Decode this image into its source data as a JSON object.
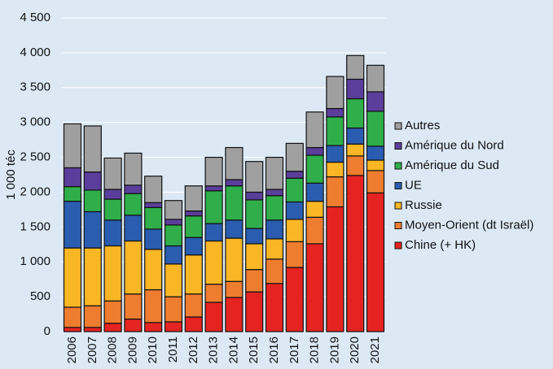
{
  "chart_data": {
    "type": "stacked_bar",
    "y_label": "1 000 téc",
    "categories": [
      "2006",
      "2007",
      "2008",
      "2009",
      "2010",
      "2011",
      "2012",
      "2013",
      "2014",
      "2015",
      "2016",
      "2017",
      "2018",
      "2019",
      "2020",
      "2021"
    ],
    "series": [
      {
        "name": "Chine (+ HK)",
        "color": "#e52421",
        "values": [
          60,
          60,
          120,
          180,
          130,
          140,
          210,
          420,
          490,
          570,
          690,
          920,
          1260,
          1790,
          2240,
          1990
        ]
      },
      {
        "name": "Moyen-Orient (dt Israël)",
        "color": "#ee7d30",
        "values": [
          290,
          310,
          320,
          360,
          470,
          360,
          330,
          260,
          230,
          320,
          350,
          370,
          380,
          430,
          280,
          320
        ]
      },
      {
        "name": "Russie",
        "color": "#f9b625",
        "values": [
          850,
          830,
          790,
          760,
          580,
          470,
          560,
          620,
          620,
          370,
          290,
          320,
          230,
          210,
          170,
          150
        ]
      },
      {
        "name": "UE",
        "color": "#2a5db0",
        "values": [
          670,
          520,
          370,
          370,
          290,
          260,
          250,
          250,
          260,
          220,
          270,
          250,
          260,
          240,
          230,
          200
        ]
      },
      {
        "name": "Amérique du Sud",
        "color": "#2fae4a",
        "values": [
          210,
          310,
          300,
          310,
          310,
          300,
          310,
          470,
          490,
          410,
          350,
          340,
          400,
          410,
          420,
          500
        ]
      },
      {
        "name": "Amérique du Nord",
        "color": "#5b3e9b",
        "values": [
          270,
          260,
          140,
          120,
          70,
          80,
          70,
          70,
          90,
          110,
          90,
          100,
          110,
          120,
          280,
          280
        ]
      },
      {
        "name": "Autres",
        "color": "#a0a0a0",
        "values": [
          630,
          660,
          450,
          460,
          380,
          270,
          360,
          410,
          460,
          440,
          460,
          400,
          510,
          460,
          340,
          380
        ]
      }
    ],
    "ylim": [
      0,
      4500
    ],
    "yticks": [
      0,
      500,
      {
        "value": 1000,
        "label": "1 000"
      },
      {
        "value": 1500,
        "label": "1 500"
      },
      {
        "value": 2000,
        "label": "2 000"
      },
      {
        "value": 2500,
        "label": "2 500"
      },
      {
        "value": 3000,
        "label": "3 000"
      },
      {
        "value": 3500,
        "label": "3 500"
      },
      {
        "value": 4000,
        "label": "4 000"
      },
      {
        "value": 4500,
        "label": "4 500"
      }
    ],
    "grid": true
  }
}
